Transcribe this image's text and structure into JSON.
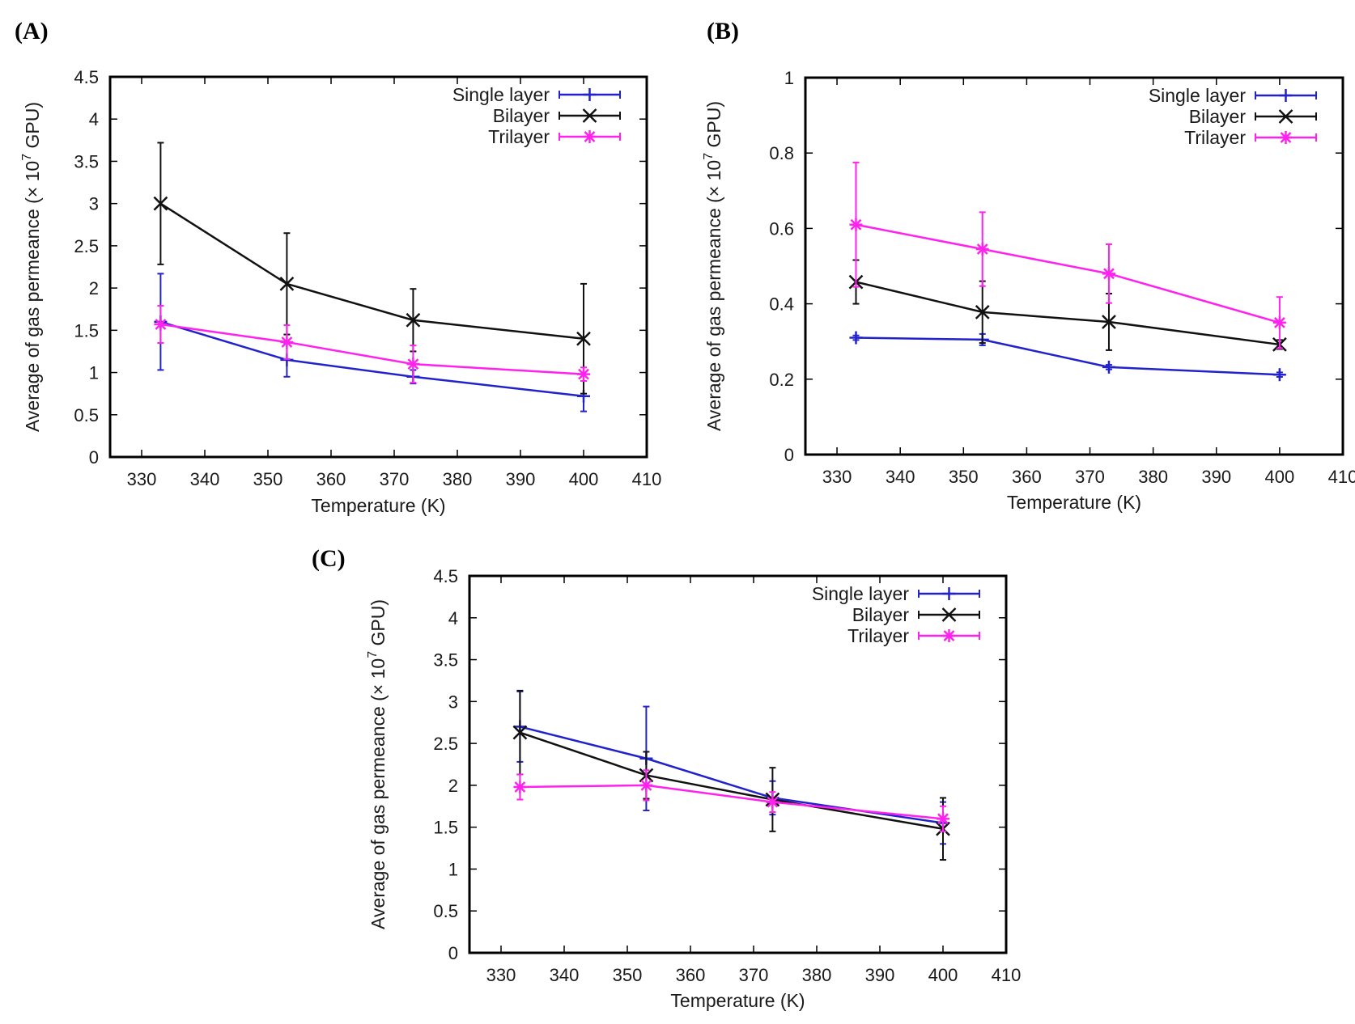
{
  "chart_data": [
    {
      "type": "line",
      "panel_label": "(A)",
      "xlabel": "Temperature (K)",
      "ylabel_main": "Average of gas permeance (× 10",
      "ylabel_exp": "7",
      "ylabel_tail": " GPU)",
      "xlim": [
        325,
        410
      ],
      "ylim": [
        0,
        4.5
      ],
      "xticks": [
        330,
        340,
        350,
        360,
        370,
        380,
        390,
        400,
        410
      ],
      "yticks": [
        0,
        0.5,
        1,
        1.5,
        2,
        2.5,
        3,
        3.5,
        4,
        4.5
      ],
      "legend_position": "top-right",
      "x": [
        333,
        353,
        373,
        400
      ],
      "series": [
        {
          "name": "Single layer",
          "marker": "plus",
          "color": "#2222cc",
          "values": [
            1.6,
            1.15,
            0.95,
            0.72
          ],
          "err": [
            0.57,
            0.2,
            0.08,
            0.18
          ]
        },
        {
          "name": "Bilayer",
          "marker": "x",
          "color": "#111111",
          "values": [
            3.0,
            2.05,
            1.62,
            1.4
          ],
          "err": [
            0.72,
            0.6,
            0.37,
            0.65
          ]
        },
        {
          "name": "Trilayer",
          "marker": "star",
          "color": "#ff22ee",
          "values": [
            1.57,
            1.36,
            1.1,
            0.98
          ],
          "err": [
            0.22,
            0.2,
            0.22,
            0.08
          ]
        }
      ]
    },
    {
      "type": "line",
      "panel_label": "(B)",
      "xlabel": "Temperature (K)",
      "ylabel_main": "Average of gas permeance (× 10",
      "ylabel_exp": "7",
      "ylabel_tail": " GPU)",
      "xlim": [
        325,
        410
      ],
      "ylim": [
        0,
        1
      ],
      "xticks": [
        330,
        340,
        350,
        360,
        370,
        380,
        390,
        400,
        410
      ],
      "yticks": [
        0,
        0.2,
        0.4,
        0.6,
        0.8,
        1
      ],
      "legend_position": "top-right",
      "x": [
        333,
        353,
        373,
        400
      ],
      "series": [
        {
          "name": "Single layer",
          "marker": "plus",
          "color": "#2222cc",
          "values": [
            0.31,
            0.305,
            0.232,
            0.212
          ],
          "err": [
            0.006,
            0.015,
            0.006,
            0.006
          ]
        },
        {
          "name": "Bilayer",
          "marker": "x",
          "color": "#111111",
          "values": [
            0.458,
            0.378,
            0.352,
            0.292
          ],
          "err": [
            0.058,
            0.082,
            0.075,
            0.012
          ]
        },
        {
          "name": "Trilayer",
          "marker": "star",
          "color": "#ff22ee",
          "values": [
            0.61,
            0.545,
            0.48,
            0.35
          ],
          "err": [
            0.165,
            0.098,
            0.078,
            0.068
          ]
        }
      ]
    },
    {
      "type": "line",
      "panel_label": "(C)",
      "xlabel": "Temperature (K)",
      "ylabel_main": "Average of gas permeance (× 10",
      "ylabel_exp": "7",
      "ylabel_tail": " GPU)",
      "xlim": [
        325,
        410
      ],
      "ylim": [
        0,
        4.5
      ],
      "xticks": [
        330,
        340,
        350,
        360,
        370,
        380,
        390,
        400,
        410
      ],
      "yticks": [
        0,
        0.5,
        1,
        1.5,
        2,
        2.5,
        3,
        3.5,
        4,
        4.5
      ],
      "legend_position": "top-right",
      "x": [
        333,
        353,
        373,
        400
      ],
      "series": [
        {
          "name": "Single layer",
          "marker": "plus",
          "color": "#2222cc",
          "values": [
            2.7,
            2.32,
            1.85,
            1.55
          ],
          "err": [
            0.42,
            0.62,
            0.2,
            0.25
          ]
        },
        {
          "name": "Bilayer",
          "marker": "x",
          "color": "#111111",
          "values": [
            2.63,
            2.12,
            1.83,
            1.48
          ],
          "err": [
            0.5,
            0.28,
            0.38,
            0.37
          ]
        },
        {
          "name": "Trilayer",
          "marker": "star",
          "color": "#ff22ee",
          "values": [
            1.98,
            2.0,
            1.8,
            1.6
          ],
          "err": [
            0.15,
            0.18,
            0.12,
            0.15
          ]
        }
      ]
    }
  ]
}
